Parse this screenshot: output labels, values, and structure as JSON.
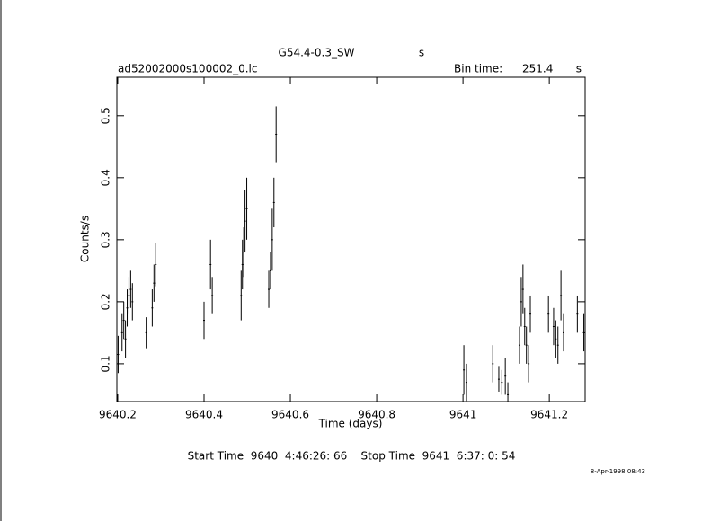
{
  "chart_data": {
    "type": "scatter",
    "title": "G54.4-0.3_SW",
    "title_unit": "s",
    "subtitle": "ad52002000s100002_0.lc",
    "bin_time_label": "Bin time:",
    "bin_time": "251.4",
    "bin_time_unit": "s",
    "x_label": "Time (days)",
    "y_label": "Counts/s",
    "footer": "Start Time  9640  4:46:26: 66    Stop Time  9641  6:37: 0: 54",
    "date": "8-Apr-1998 08:43",
    "color": "#000000",
    "xlim": [
      9640.198,
      9641.283
    ],
    "ylim": [
      0.039,
      0.562
    ],
    "xticks": [
      9640.2,
      9640.4,
      9640.6,
      9640.8,
      9641,
      9641.2
    ],
    "yticks": [
      0.1,
      0.2,
      0.3,
      0.4,
      0.5
    ],
    "x": [
      9640.201,
      9640.21,
      9640.214,
      9640.218,
      9640.222,
      9640.226,
      9640.23,
      9640.234,
      9640.266,
      9640.28,
      9640.284,
      9640.288,
      9640.4,
      9640.415,
      9640.419,
      9640.486,
      9640.489,
      9640.492,
      9640.495,
      9640.499,
      9640.55,
      9640.554,
      9640.558,
      9640.562,
      9640.567,
      9641.002,
      9641.008,
      9641.069,
      9641.083,
      9641.09,
      9641.098,
      9641.104,
      9641.131,
      9641.135,
      9641.139,
      9641.143,
      9641.147,
      9641.152,
      9641.156,
      9641.198,
      9641.21,
      9641.215,
      9641.22,
      9641.227,
      9641.233,
      9641.265,
      9641.28
    ],
    "values": [
      0.115,
      0.15,
      0.17,
      0.14,
      0.19,
      0.21,
      0.22,
      0.2,
      0.15,
      0.19,
      0.23,
      0.26,
      0.17,
      0.26,
      0.21,
      0.21,
      0.26,
      0.28,
      0.33,
      0.35,
      0.22,
      0.25,
      0.3,
      0.36,
      0.47,
      0.09,
      0.07,
      0.1,
      0.075,
      0.07,
      0.08,
      0.05,
      0.13,
      0.2,
      0.22,
      0.16,
      0.13,
      0.1,
      0.18,
      0.18,
      0.16,
      0.14,
      0.13,
      0.21,
      0.15,
      0.18,
      0.15
    ],
    "errors": [
      0.03,
      0.03,
      0.03,
      0.03,
      0.03,
      0.03,
      0.03,
      0.03,
      0.025,
      0.03,
      0.03,
      0.035,
      0.03,
      0.04,
      0.03,
      0.04,
      0.04,
      0.04,
      0.05,
      0.05,
      0.03,
      0.03,
      0.05,
      0.04,
      0.045,
      0.04,
      0.03,
      0.03,
      0.02,
      0.02,
      0.03,
      0.02,
      0.03,
      0.04,
      0.04,
      0.03,
      0.03,
      0.03,
      0.03,
      0.03,
      0.03,
      0.03,
      0.03,
      0.04,
      0.03,
      0.03,
      0.03
    ]
  }
}
